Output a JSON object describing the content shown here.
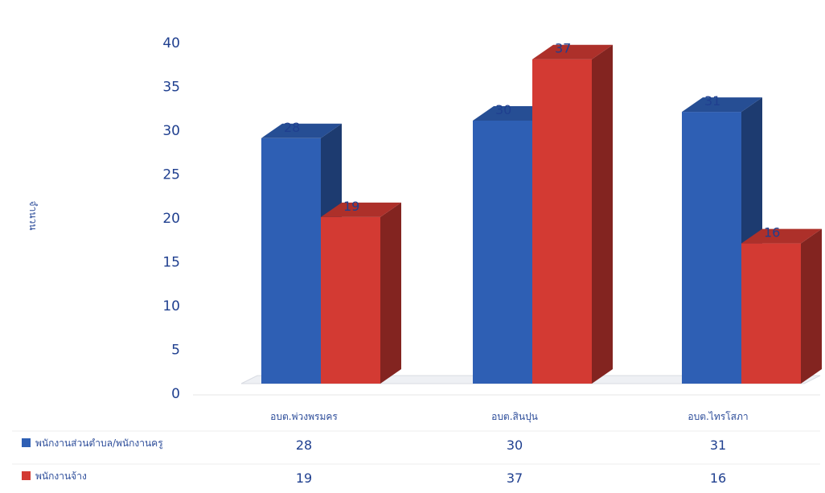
{
  "chart_data": {
    "type": "bar",
    "ylabel": "จำนวน",
    "ylim": [
      0,
      40
    ],
    "yticks": [
      0,
      5,
      10,
      15,
      20,
      25,
      30,
      35,
      40
    ],
    "categories": [
      "อบต.พ่วงพรมคร",
      "อบต.สินปุน",
      "อบต.ไทรโสภา"
    ],
    "series": [
      {
        "name": "พนักงานส่วนตำบล/พนักงานครู",
        "values": [
          28,
          30,
          31
        ],
        "color": "#2e5fb4"
      },
      {
        "name": "พนักงานจ้าง",
        "values": [
          19,
          37,
          16
        ],
        "color": "#d33a33"
      }
    ],
    "grid": false,
    "legend": "bottom-left data table",
    "three_d": true
  }
}
